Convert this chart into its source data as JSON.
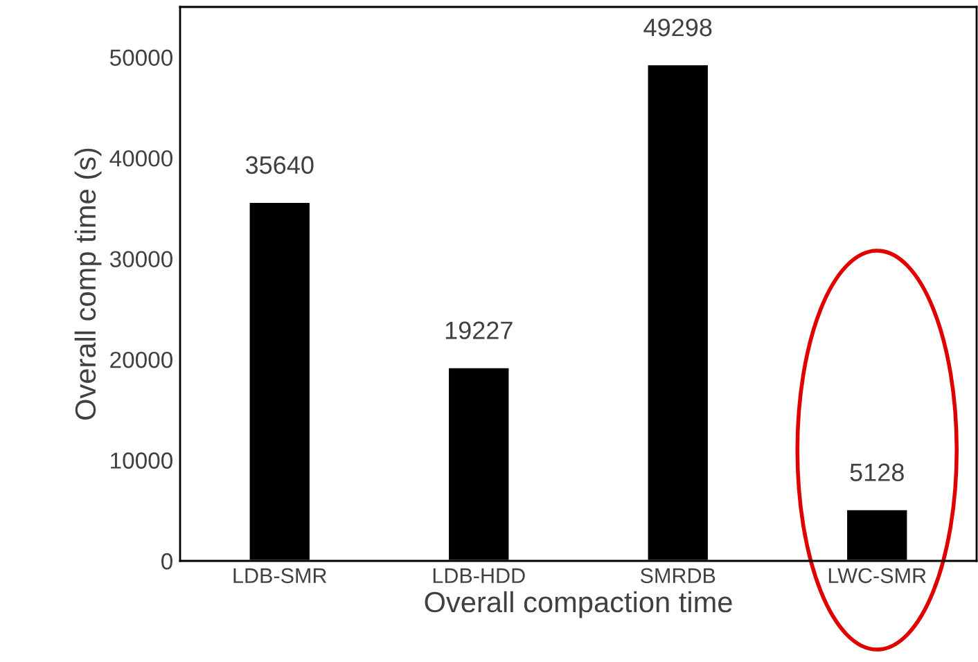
{
  "chart_data": {
    "type": "bar",
    "categories": [
      "LDB-SMR",
      "LDB-HDD",
      "SMRDB",
      "LWC-SMR"
    ],
    "values": [
      35640,
      19227,
      49298,
      5128
    ],
    "color": "#000000",
    "xlabel": "Overall compaction time",
    "ylabel": "Overall comp time (s)",
    "ylim": [
      0,
      55000
    ],
    "yticks": [
      0,
      10000,
      20000,
      30000,
      40000,
      50000
    ],
    "data_labels": true,
    "grid": false,
    "legend": false
  }
}
